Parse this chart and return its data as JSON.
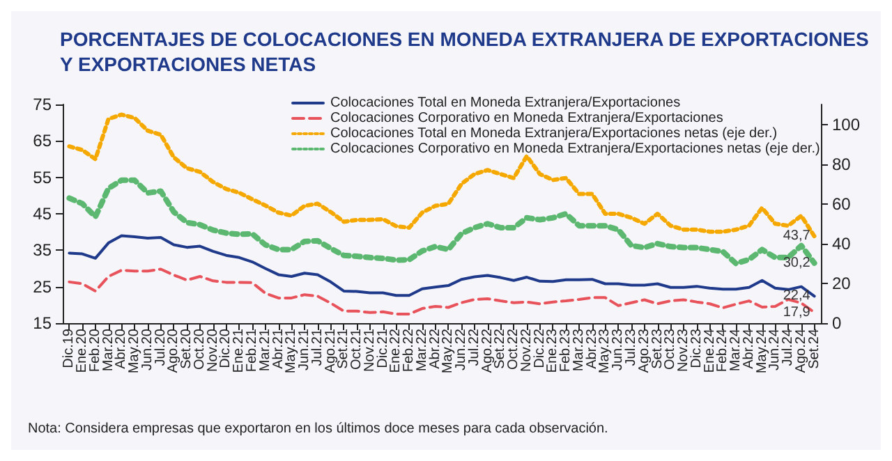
{
  "chart_data": {
    "type": "line",
    "title": "PORCENTAJES DE COLOCACIONES EN MONEDA EXTRANJERA DE EXPORTACIONES\nY EXPORTACIONES NETAS",
    "categories": [
      "Dic.19",
      "Ene.20",
      "Feb.20",
      "Mar.20",
      "Abr.20",
      "May.20",
      "Jun.20",
      "Jul.20",
      "Ago.20",
      "Set.20",
      "Oct.20",
      "Nov.20",
      "Dic.20",
      "Ene.21",
      "Feb.21",
      "Mar.21",
      "Abr.21",
      "May.21",
      "Jun.21",
      "Jul.21",
      "Ago.21",
      "Set.21",
      "Oct.21",
      "Nov.21",
      "Dic.21",
      "Ene.22",
      "Feb.22",
      "Mar.22",
      "Abr.22",
      "May.22",
      "Jun.22",
      "Jul.22",
      "Ago.22",
      "Set.22",
      "Oct.22",
      "Nov.22",
      "Dic.22",
      "Ene.23",
      "Feb.23",
      "Mar.23",
      "Abr.23",
      "May.23",
      "Jun.23",
      "Jul.23",
      "Ago.23",
      "Set.23",
      "Oct.23",
      "Nov.23",
      "Dic.23",
      "Ene.24",
      "Feb.24",
      "Mar.24",
      "Abr.24",
      "May.24",
      "Jun.24",
      "Jul.24",
      "Ago.24",
      "Set.24"
    ],
    "series": [
      {
        "name": "Colocaciones Total en Moneda Extranjera/Exportaciones",
        "color": "#1f3a8a",
        "line_style": "solid",
        "values": [
          34.2,
          34,
          32.8,
          37,
          39,
          38.7,
          38.3,
          38.5,
          36.5,
          35.8,
          36.1,
          34.7,
          33.6,
          33,
          31.8,
          30,
          28.3,
          27.8,
          28.7,
          28.3,
          26.3,
          23.8,
          23.7,
          23.3,
          23.3,
          22.6,
          22.6,
          24.4,
          24.9,
          25.3,
          27,
          27.7,
          28.1,
          27.5,
          26.7,
          27.6,
          26.5,
          26.4,
          26.9,
          26.9,
          27,
          25.8,
          25.8,
          25.4,
          25.4,
          25.8,
          24.8,
          24.8,
          25.1,
          24.6,
          24.3,
          24.3,
          24.8,
          26.7,
          24.6,
          24.2,
          25,
          22.4
        ],
        "value_labels": [
          null,
          null,
          null,
          null,
          null,
          null,
          null,
          null,
          null,
          null,
          null,
          null,
          null,
          null,
          null,
          null,
          null,
          null,
          null,
          null,
          null,
          null,
          null,
          null,
          null,
          null,
          null,
          null,
          null,
          null,
          null,
          null,
          null,
          null,
          null,
          null,
          null,
          null,
          null,
          null,
          null,
          null,
          null,
          null,
          null,
          null,
          null,
          null,
          null,
          null,
          null,
          null,
          null,
          null,
          null,
          null,
          null,
          "22,4"
        ]
      },
      {
        "name": "Colocaciones Corporativo en Moneda Extranjera/Exportaciones",
        "color": "#e8525a",
        "line_style": "dashed",
        "values": [
          26.3,
          25.8,
          23.8,
          27.8,
          29.5,
          29.3,
          29.3,
          29.8,
          28.2,
          26.8,
          27.8,
          26.6,
          26.2,
          26.2,
          26.1,
          23.2,
          21.9,
          21.9,
          22.8,
          22.4,
          20.5,
          18.3,
          18.3,
          17.9,
          18.1,
          17.5,
          17.5,
          19,
          19.6,
          19.3,
          20.6,
          21.5,
          21.7,
          21.1,
          20.6,
          20.8,
          20.3,
          20.8,
          21.1,
          21.5,
          22,
          22,
          19.8,
          20.6,
          21.4,
          20.3,
          21.1,
          21.4,
          20.8,
          20.3,
          19.2,
          20.2,
          21.1,
          19.4,
          19.6,
          21.5,
          20.5,
          17.9
        ],
        "value_labels": [
          null,
          null,
          null,
          null,
          null,
          null,
          null,
          null,
          null,
          null,
          null,
          null,
          null,
          null,
          null,
          null,
          null,
          null,
          null,
          null,
          null,
          null,
          null,
          null,
          null,
          null,
          null,
          null,
          null,
          null,
          null,
          null,
          null,
          null,
          null,
          null,
          null,
          null,
          null,
          null,
          null,
          null,
          null,
          null,
          null,
          null,
          null,
          null,
          null,
          null,
          null,
          null,
          null,
          null,
          null,
          null,
          null,
          "17,9"
        ]
      },
      {
        "name": "Colocaciones Total en Moneda Extranjera/Exportaciones netas (eje der.)",
        "color": "#f5a800",
        "line_style": "dotted",
        "axis": "y2",
        "values": [
          88.9,
          87.1,
          82.5,
          102.7,
          104.9,
          103.2,
          96.8,
          94.8,
          83.4,
          77.9,
          76.1,
          71,
          67.5,
          65.6,
          62.3,
          59.2,
          55.6,
          54.1,
          59,
          60.1,
          55.9,
          51,
          51.9,
          51.9,
          52.3,
          48.8,
          48,
          55.6,
          59,
          60,
          70,
          75,
          77,
          75,
          73,
          84,
          75,
          72,
          73,
          65,
          65,
          55,
          55,
          53,
          50,
          55,
          49,
          47,
          47,
          46,
          46,
          47,
          49,
          58,
          50,
          49,
          54,
          43.7
        ],
        "value_labels": [
          null,
          null,
          null,
          null,
          null,
          null,
          null,
          null,
          null,
          null,
          null,
          null,
          null,
          null,
          null,
          null,
          null,
          null,
          null,
          null,
          null,
          null,
          null,
          null,
          null,
          null,
          null,
          null,
          null,
          null,
          null,
          null,
          null,
          null,
          null,
          null,
          null,
          null,
          null,
          null,
          null,
          null,
          null,
          null,
          null,
          null,
          null,
          null,
          null,
          null,
          null,
          null,
          null,
          null,
          null,
          null,
          null,
          "43,7"
        ]
      },
      {
        "name": "Colocaciones Corporativo en Moneda Extranjera/Exportaciones netas (eje der.)",
        "color": "#5cb870",
        "line_style": "dotted",
        "axis": "y2",
        "values": [
          62.9,
          60.1,
          53.5,
          67.8,
          71.9,
          71.9,
          65.5,
          66.4,
          55.9,
          50.6,
          49.5,
          46.8,
          45.3,
          44.7,
          44.9,
          39.4,
          37,
          37,
          41.1,
          41.4,
          37.6,
          34.1,
          33.6,
          33,
          32.6,
          31.7,
          31.9,
          36.3,
          38.5,
          37,
          45,
          48,
          50,
          48,
          48,
          53,
          52,
          53,
          55,
          49,
          49,
          49,
          47,
          39,
          38,
          40,
          38.5,
          38,
          38,
          37,
          36,
          30,
          32,
          37,
          33,
          33,
          39,
          30.2
        ],
        "value_labels": [
          null,
          null,
          null,
          null,
          null,
          null,
          null,
          null,
          null,
          null,
          null,
          null,
          null,
          null,
          null,
          null,
          null,
          null,
          null,
          null,
          null,
          null,
          null,
          null,
          null,
          null,
          null,
          null,
          null,
          null,
          null,
          null,
          null,
          null,
          null,
          null,
          null,
          null,
          null,
          null,
          null,
          null,
          null,
          null,
          null,
          null,
          null,
          null,
          null,
          null,
          null,
          null,
          null,
          null,
          null,
          null,
          null,
          "30,2"
        ]
      }
    ],
    "ylim": [
      15,
      75
    ],
    "yticks": [
      15,
      25,
      35,
      45,
      55,
      65,
      75
    ],
    "y2lim": [
      0,
      110
    ],
    "y2ticks": [
      0,
      20,
      40,
      60,
      80,
      100
    ],
    "grid": false,
    "legend": "top right",
    "marker": "none",
    "annotations": [
      "Nota: Considera empresas que exportaron en los últimos doce meses para cada observación."
    ]
  }
}
